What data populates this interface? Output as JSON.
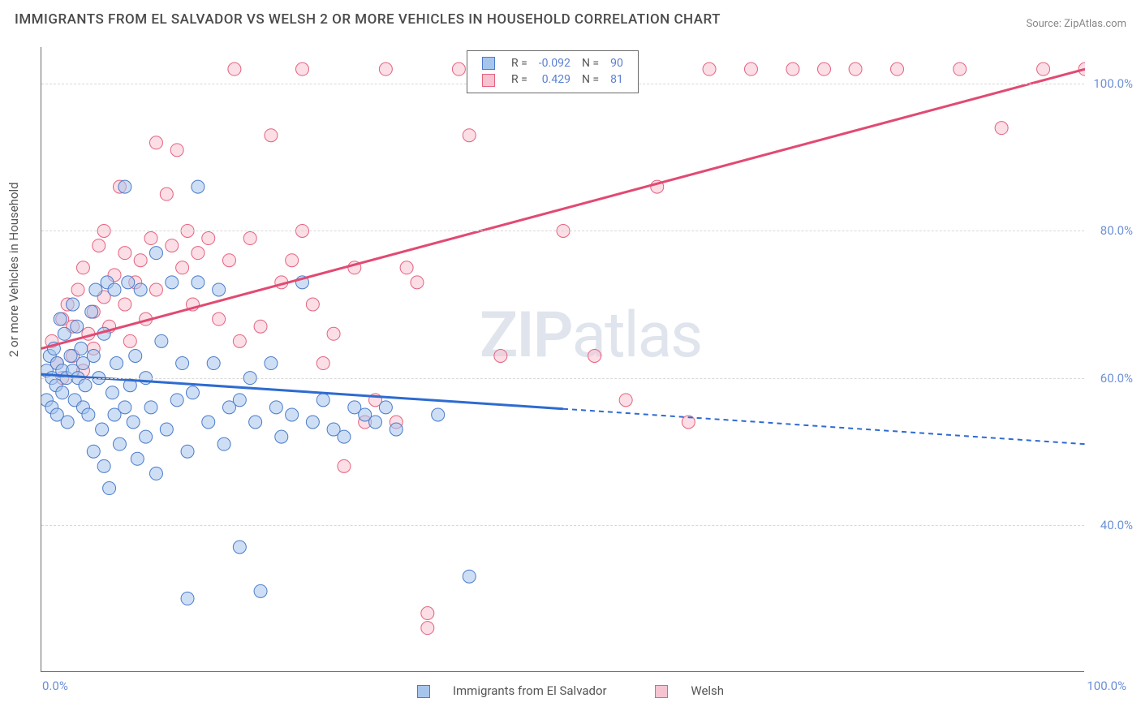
{
  "title": "IMMIGRANTS FROM EL SALVADOR VS WELSH 2 OR MORE VEHICLES IN HOUSEHOLD CORRELATION CHART",
  "source": "Source: ZipAtlas.com",
  "ylabel": "2 or more Vehicles in Household",
  "watermark_bold": "ZIP",
  "watermark_rest": "atlas",
  "chart": {
    "type": "scatter",
    "xlim": [
      0,
      100
    ],
    "ylim": [
      20,
      105
    ],
    "yticks": [
      40,
      60,
      80,
      100
    ],
    "xticks": [
      0,
      100
    ],
    "ytick_fmt": "%.1f%%",
    "xtick_fmt": "%.1f%%",
    "grid_y": [
      40,
      60,
      80,
      100
    ],
    "grid_color": "#d8d8d8",
    "plot_border_color": "#6a6a6a",
    "background_color": "#ffffff",
    "tick_label_color": "#6b8fd6",
    "marker_radius": 8,
    "marker_opacity": 0.55,
    "line_width": 3,
    "ylabel_fontsize": 15,
    "title_fontsize": 17
  },
  "series": {
    "blue": {
      "label": "Immigrants from El Salvador",
      "fill": "#a6c5ec",
      "stroke": "#4a7bc9",
      "line_color": "#2e6bd1",
      "R": "-0.092",
      "N": "90",
      "trend": {
        "x1": 0,
        "y1": 60.5,
        "x2": 50,
        "y2": 55.8,
        "dash_x2": 100,
        "dash_y2": 51.0
      },
      "points": [
        [
          0.5,
          61
        ],
        [
          0.5,
          57
        ],
        [
          0.8,
          63
        ],
        [
          1,
          60
        ],
        [
          1,
          56
        ],
        [
          1.2,
          64
        ],
        [
          1.4,
          59
        ],
        [
          1.5,
          62
        ],
        [
          1.5,
          55
        ],
        [
          1.8,
          68
        ],
        [
          2,
          61
        ],
        [
          2,
          58
        ],
        [
          2.2,
          66
        ],
        [
          2.4,
          60
        ],
        [
          2.5,
          54
        ],
        [
          2.8,
          63
        ],
        [
          3,
          61
        ],
        [
          3,
          70
        ],
        [
          3.2,
          57
        ],
        [
          3.4,
          67
        ],
        [
          3.5,
          60
        ],
        [
          3.8,
          64
        ],
        [
          4,
          56
        ],
        [
          4,
          62
        ],
        [
          4.2,
          59
        ],
        [
          4.5,
          55
        ],
        [
          4.8,
          69
        ],
        [
          5,
          50
        ],
        [
          5,
          63
        ],
        [
          5.2,
          72
        ],
        [
          5.5,
          60
        ],
        [
          5.8,
          53
        ],
        [
          6,
          66
        ],
        [
          6,
          48
        ],
        [
          6.3,
          73
        ],
        [
          6.5,
          45
        ],
        [
          6.8,
          58
        ],
        [
          7,
          72
        ],
        [
          7,
          55
        ],
        [
          7.2,
          62
        ],
        [
          7.5,
          51
        ],
        [
          8,
          86
        ],
        [
          8,
          56
        ],
        [
          8.3,
          73
        ],
        [
          8.5,
          59
        ],
        [
          8.8,
          54
        ],
        [
          9,
          63
        ],
        [
          9.2,
          49
        ],
        [
          9.5,
          72
        ],
        [
          10,
          60
        ],
        [
          10,
          52
        ],
        [
          10.5,
          56
        ],
        [
          11,
          47
        ],
        [
          11,
          77
        ],
        [
          11.5,
          65
        ],
        [
          12,
          53
        ],
        [
          12.5,
          73
        ],
        [
          13,
          57
        ],
        [
          13.5,
          62
        ],
        [
          14,
          50
        ],
        [
          14,
          30
        ],
        [
          14.5,
          58
        ],
        [
          15,
          86
        ],
        [
          15,
          73
        ],
        [
          16,
          54
        ],
        [
          16.5,
          62
        ],
        [
          17,
          72
        ],
        [
          17.5,
          51
        ],
        [
          18,
          56
        ],
        [
          19,
          57
        ],
        [
          19,
          37
        ],
        [
          20,
          60
        ],
        [
          20.5,
          54
        ],
        [
          21,
          31
        ],
        [
          22,
          62
        ],
        [
          22.5,
          56
        ],
        [
          23,
          52
        ],
        [
          24,
          55
        ],
        [
          25,
          73
        ],
        [
          26,
          54
        ],
        [
          27,
          57
        ],
        [
          28,
          53
        ],
        [
          29,
          52
        ],
        [
          30,
          56
        ],
        [
          31,
          55
        ],
        [
          32,
          54
        ],
        [
          33,
          56
        ],
        [
          34,
          53
        ],
        [
          38,
          55
        ],
        [
          41,
          33
        ]
      ]
    },
    "pink": {
      "label": "Welsh",
      "fill": "#f7c3d1",
      "stroke": "#e5627f",
      "line_color": "#e14a72",
      "R": "0.429",
      "N": "81",
      "trend": {
        "x1": 0,
        "y1": 64,
        "x2": 100,
        "y2": 102
      },
      "points": [
        [
          1,
          65
        ],
        [
          1.5,
          62
        ],
        [
          2,
          68
        ],
        [
          2,
          60
        ],
        [
          2.5,
          70
        ],
        [
          3,
          63
        ],
        [
          3,
          67
        ],
        [
          3.5,
          72
        ],
        [
          4,
          61
        ],
        [
          4,
          75
        ],
        [
          4.5,
          66
        ],
        [
          5,
          69
        ],
        [
          5,
          64
        ],
        [
          5.5,
          78
        ],
        [
          6,
          71
        ],
        [
          6,
          80
        ],
        [
          6.5,
          67
        ],
        [
          7,
          74
        ],
        [
          7.5,
          86
        ],
        [
          8,
          70
        ],
        [
          8,
          77
        ],
        [
          8.5,
          65
        ],
        [
          9,
          73
        ],
        [
          9.5,
          76
        ],
        [
          10,
          68
        ],
        [
          10.5,
          79
        ],
        [
          11,
          92
        ],
        [
          11,
          72
        ],
        [
          12,
          85
        ],
        [
          12.5,
          78
        ],
        [
          13,
          91
        ],
        [
          13.5,
          75
        ],
        [
          14,
          80
        ],
        [
          14.5,
          70
        ],
        [
          15,
          77
        ],
        [
          16,
          79
        ],
        [
          17,
          68
        ],
        [
          18,
          76
        ],
        [
          18.5,
          102
        ],
        [
          19,
          65
        ],
        [
          20,
          79
        ],
        [
          21,
          67
        ],
        [
          22,
          93
        ],
        [
          23,
          73
        ],
        [
          24,
          76
        ],
        [
          25,
          80
        ],
        [
          25,
          102
        ],
        [
          26,
          70
        ],
        [
          27,
          62
        ],
        [
          28,
          66
        ],
        [
          29,
          48
        ],
        [
          30,
          75
        ],
        [
          31,
          54
        ],
        [
          32,
          57
        ],
        [
          33,
          102
        ],
        [
          34,
          54
        ],
        [
          35,
          75
        ],
        [
          36,
          73
        ],
        [
          37,
          26
        ],
        [
          37,
          28
        ],
        [
          40,
          102
        ],
        [
          41,
          93
        ],
        [
          42,
          102
        ],
        [
          44,
          63
        ],
        [
          45,
          102
        ],
        [
          47,
          102
        ],
        [
          50,
          80
        ],
        [
          53,
          63
        ],
        [
          56,
          57
        ],
        [
          59,
          86
        ],
        [
          62,
          54
        ],
        [
          64,
          102
        ],
        [
          68,
          102
        ],
        [
          72,
          102
        ],
        [
          75,
          102
        ],
        [
          78,
          102
        ],
        [
          82,
          102
        ],
        [
          88,
          102
        ],
        [
          92,
          94
        ],
        [
          96,
          102
        ],
        [
          100,
          102
        ]
      ]
    }
  },
  "stats_legend": {
    "r_label": "R =",
    "n_label": "N ="
  },
  "bottom_legend": {
    "items": [
      "blue",
      "pink"
    ]
  }
}
